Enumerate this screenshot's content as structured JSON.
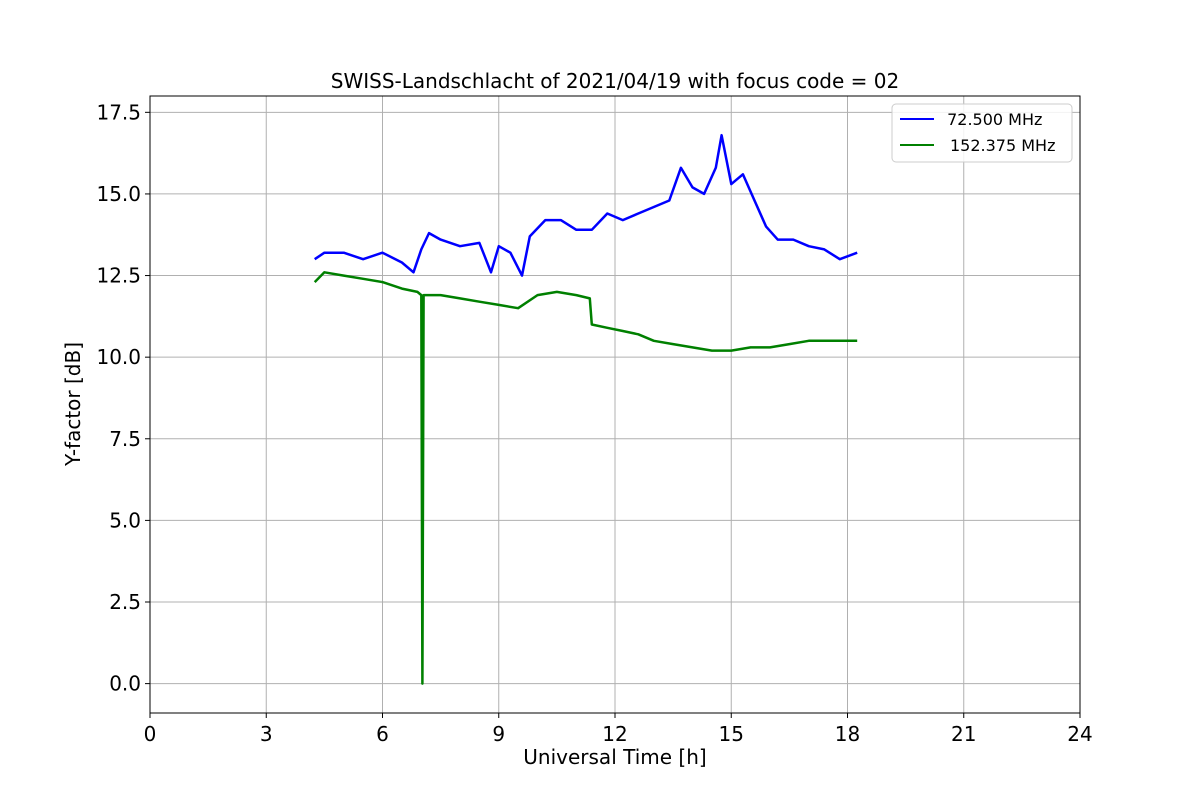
{
  "chart_data": {
    "type": "line",
    "title": "SWISS-Landschlacht of 2021/04/19 with focus code = 02",
    "xlabel": "Universal Time [h]",
    "ylabel": "Y-factor [dB]",
    "xlim": [
      0,
      24
    ],
    "ylim": [
      -0.9,
      18.0
    ],
    "x_ticks": [
      0,
      3,
      6,
      9,
      12,
      15,
      18,
      21,
      24
    ],
    "x_tick_labels": [
      "0",
      "3",
      "6",
      "9",
      "12",
      "15",
      "18",
      "21",
      "24"
    ],
    "y_ticks": [
      0.0,
      2.5,
      5.0,
      7.5,
      10.0,
      12.5,
      15.0,
      17.5
    ],
    "y_tick_labels": [
      "0.0",
      "2.5",
      "5.0",
      "7.5",
      "10.0",
      "12.5",
      "15.0",
      "17.5"
    ],
    "grid": true,
    "legend_position": "top-right",
    "series": [
      {
        "name": " 72.500 MHz",
        "color": "#0000ff",
        "x": [
          4.25,
          4.5,
          5.0,
          5.5,
          6.0,
          6.5,
          6.8,
          7.0,
          7.2,
          7.5,
          8.0,
          8.5,
          8.8,
          9.0,
          9.3,
          9.6,
          9.8,
          10.2,
          10.6,
          11.0,
          11.4,
          11.8,
          12.2,
          12.6,
          13.0,
          13.4,
          13.7,
          14.0,
          14.3,
          14.6,
          14.75,
          15.0,
          15.3,
          15.6,
          15.9,
          16.2,
          16.6,
          17.0,
          17.4,
          17.8,
          18.25
        ],
        "y": [
          13.0,
          13.2,
          13.2,
          13.0,
          13.2,
          12.9,
          12.6,
          13.3,
          13.8,
          13.6,
          13.4,
          13.5,
          12.6,
          13.4,
          13.2,
          12.5,
          13.7,
          14.2,
          14.2,
          13.9,
          13.9,
          14.4,
          14.2,
          14.4,
          14.6,
          14.8,
          15.8,
          15.2,
          15.0,
          15.8,
          16.8,
          15.3,
          15.6,
          14.8,
          14.0,
          13.6,
          13.6,
          13.4,
          13.3,
          13.0,
          13.2
        ]
      },
      {
        "name": "152.375 MHz",
        "color": "#008000",
        "x": [
          4.25,
          4.5,
          5.0,
          5.5,
          6.0,
          6.5,
          6.9,
          7.0,
          7.03,
          7.06,
          7.1,
          7.5,
          8.0,
          8.5,
          9.0,
          9.5,
          10.0,
          10.5,
          11.0,
          11.35,
          11.4,
          11.8,
          12.2,
          12.6,
          13.0,
          13.5,
          14.0,
          14.5,
          15.0,
          15.5,
          16.0,
          16.5,
          17.0,
          17.5,
          18.0,
          18.25
        ],
        "y": [
          12.3,
          12.6,
          12.5,
          12.4,
          12.3,
          12.1,
          12.0,
          11.9,
          0.0,
          11.9,
          11.9,
          11.9,
          11.8,
          11.7,
          11.6,
          11.5,
          11.9,
          12.0,
          11.9,
          11.8,
          11.0,
          10.9,
          10.8,
          10.7,
          10.5,
          10.4,
          10.3,
          10.2,
          10.2,
          10.3,
          10.3,
          10.4,
          10.5,
          10.5,
          10.5,
          10.5
        ]
      }
    ]
  }
}
